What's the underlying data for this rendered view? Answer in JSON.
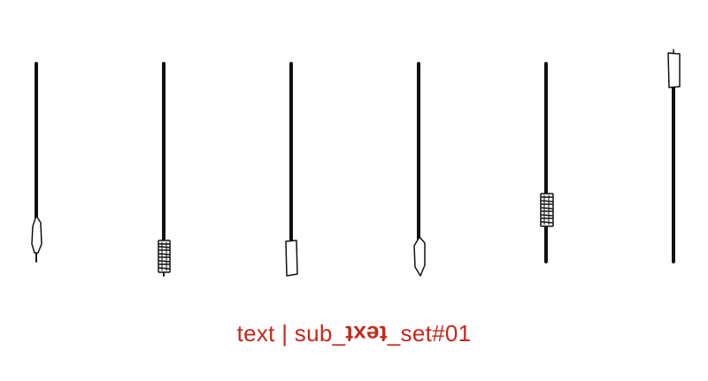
{
  "palette": {
    "ink": "#111111",
    "caption": "#c3291c",
    "background": "#ffffff"
  },
  "sticks": [
    {
      "tip_icon": "pointed-leaf-tip-icon"
    },
    {
      "tip_icon": "striped-grip-icon"
    },
    {
      "tip_icon": "square-flat-tip-icon"
    },
    {
      "tip_icon": "pointed-leaf-tip-icon"
    },
    {
      "tip_icon": "striped-grip-icon"
    },
    {
      "tip_icon": "square-cap-icon"
    }
  ],
  "caption": {
    "prefix": "text | sub_",
    "reversed": "text",
    "suffix": "_set#01"
  }
}
